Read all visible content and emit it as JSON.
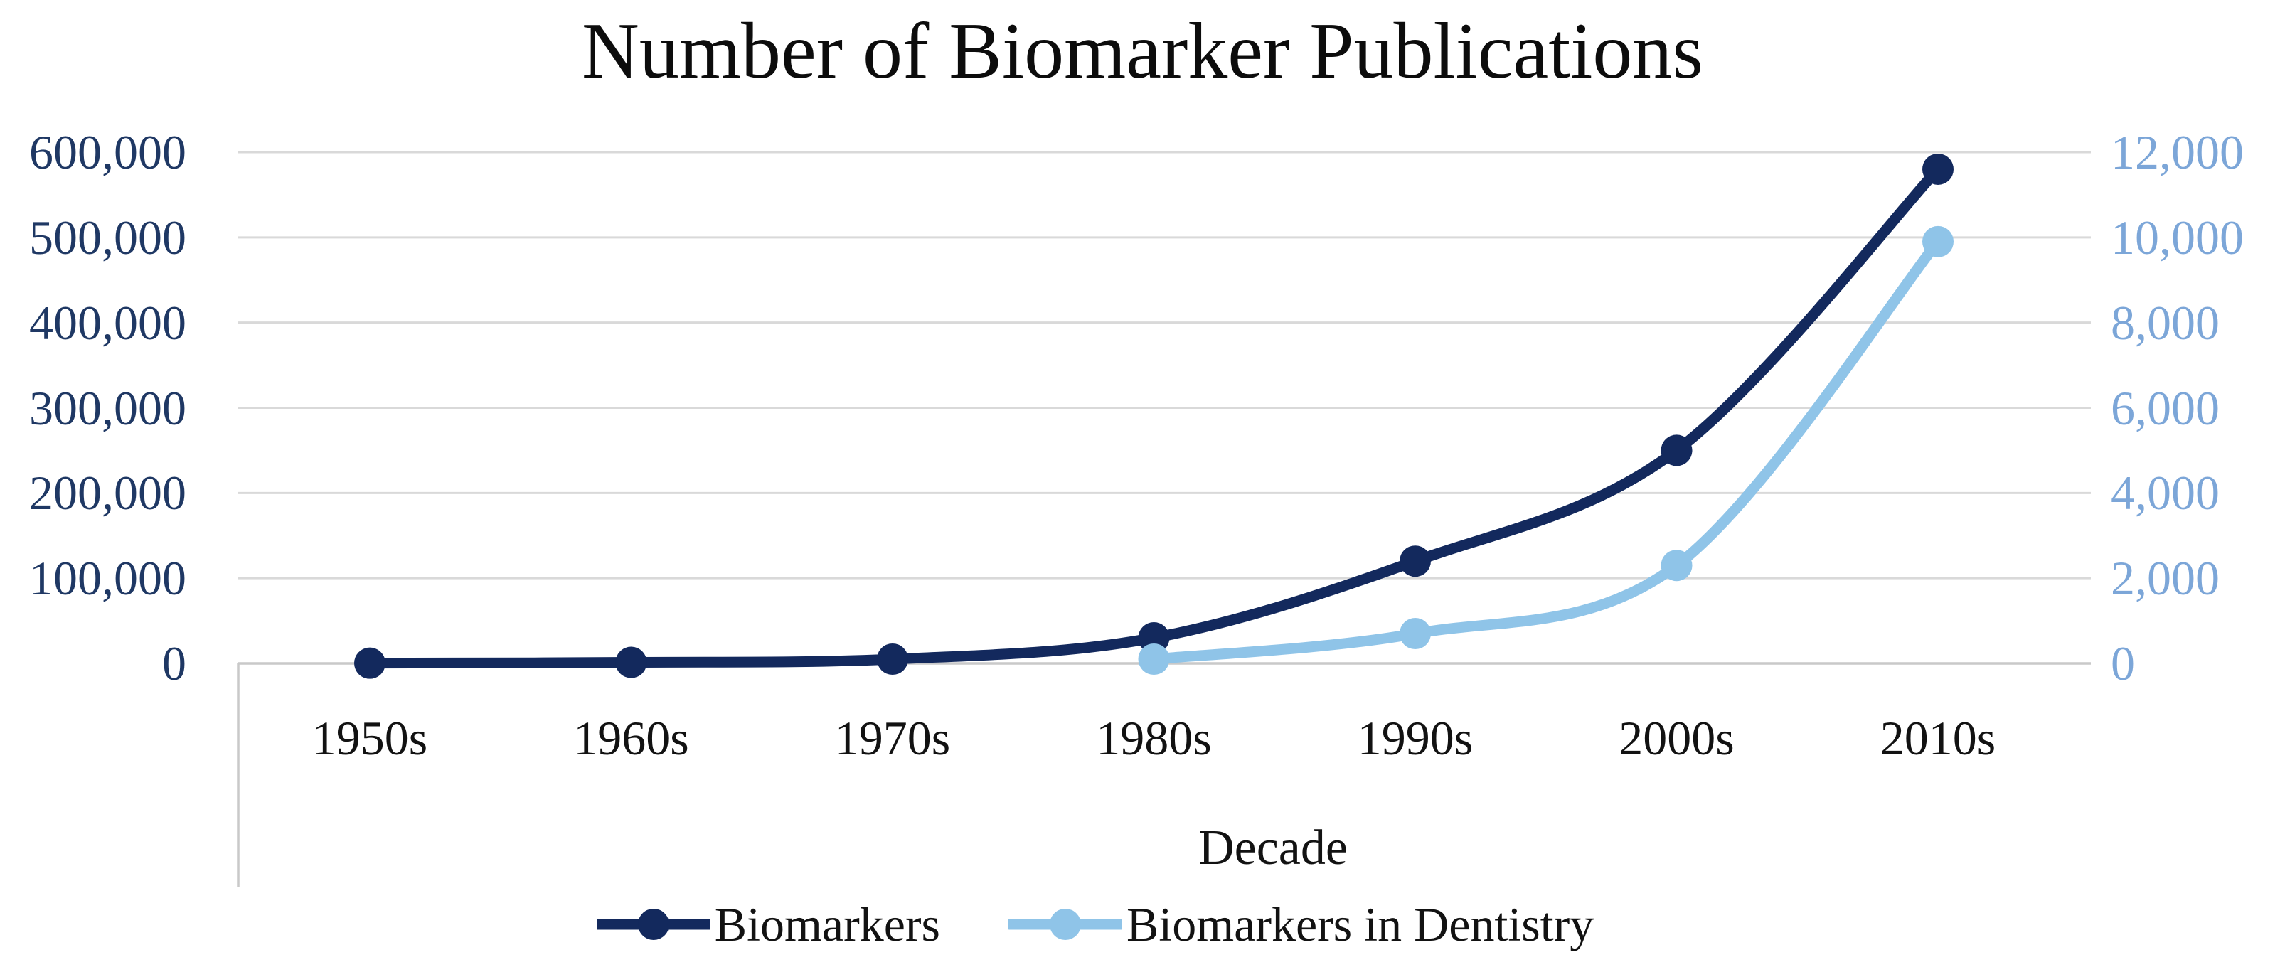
{
  "title": "Number of Biomarker Publications",
  "chart_data": {
    "type": "line",
    "title": "Number of Biomarker Publications",
    "xlabel": "Decade",
    "categories": [
      "1950s",
      "1960s",
      "1970s",
      "1980s",
      "1990s",
      "2000s",
      "2010s"
    ],
    "series": [
      {
        "name": "Biomarkers",
        "axis": "left",
        "color": "#13295D",
        "smooth": true,
        "values": [
          300,
          1200,
          5000,
          30000,
          120000,
          250000,
          580000
        ]
      },
      {
        "name": "Biomarkers in Dentistry",
        "axis": "right",
        "color": "#8FC4E8",
        "smooth": true,
        "values": [
          null,
          null,
          null,
          100,
          700,
          2300,
          9900
        ]
      }
    ],
    "y_axis_left": {
      "range": [
        0,
        600000
      ],
      "tick_step": 100000,
      "tick_labels": [
        "0",
        "100,000",
        "200,000",
        "300,000",
        "400,000",
        "500,000",
        "600,000"
      ],
      "label_color": "#1F3864"
    },
    "y_axis_right": {
      "range": [
        0,
        12000
      ],
      "tick_step": 2000,
      "tick_labels": [
        "0",
        "2,000",
        "4,000",
        "6,000",
        "8,000",
        "10,000",
        "12,000"
      ],
      "label_color": "#7CA6D8"
    },
    "grid": true,
    "gridline_color": "#D9D9D9",
    "axis_line_color": "#C9C9C9",
    "legend_position": "bottom"
  },
  "legend": {
    "items": [
      {
        "label": "Biomarkers",
        "color": "#13295D"
      },
      {
        "label": "Biomarkers in Dentistry",
        "color": "#8FC4E8"
      }
    ]
  }
}
